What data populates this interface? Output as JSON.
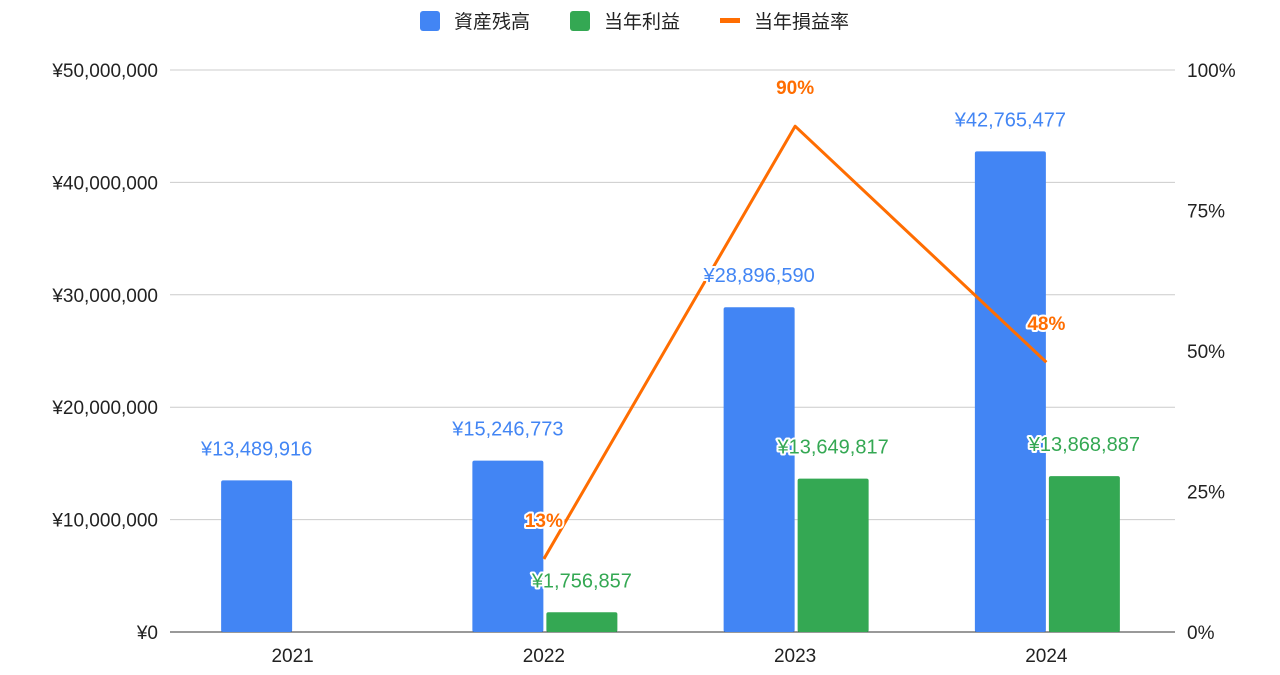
{
  "chart_data": {
    "type": "bar",
    "categories": [
      "2021",
      "2022",
      "2023",
      "2024"
    ],
    "series": [
      {
        "name": "資産残高",
        "kind": "bar",
        "axis": "left",
        "color": "#4285f4",
        "values": [
          13489916,
          15246773,
          28896590,
          42765477
        ],
        "labels": [
          "¥13,489,916",
          "¥15,246,773",
          "¥28,896,590",
          "¥42,765,477"
        ]
      },
      {
        "name": "当年利益",
        "kind": "bar",
        "axis": "left",
        "color": "#34a853",
        "values": [
          null,
          1756857,
          13649817,
          13868887
        ],
        "labels": [
          null,
          "¥1,756,857",
          "¥13,649,817",
          "¥13,868,887"
        ]
      },
      {
        "name": "当年損益率",
        "kind": "line",
        "axis": "right",
        "color": "#ff6d01",
        "values": [
          null,
          13,
          90,
          48
        ],
        "labels": [
          null,
          "13%",
          "90%",
          "48%"
        ]
      }
    ],
    "left_axis": {
      "ylim": [
        0,
        50000000
      ],
      "ticks": [
        0,
        10000000,
        20000000,
        30000000,
        40000000,
        50000000
      ],
      "tick_labels": [
        "¥0",
        "¥10,000,000",
        "¥20,000,000",
        "¥30,000,000",
        "¥40,000,000",
        "¥50,000,000"
      ]
    },
    "right_axis": {
      "ylim": [
        0,
        100
      ],
      "ticks": [
        0,
        25,
        50,
        75,
        100
      ],
      "tick_labels": [
        "0%",
        "25%",
        "50%",
        "75%",
        "100%"
      ]
    },
    "legend": "top",
    "grid": true,
    "title": "",
    "xlabel": "",
    "ylabel": ""
  }
}
